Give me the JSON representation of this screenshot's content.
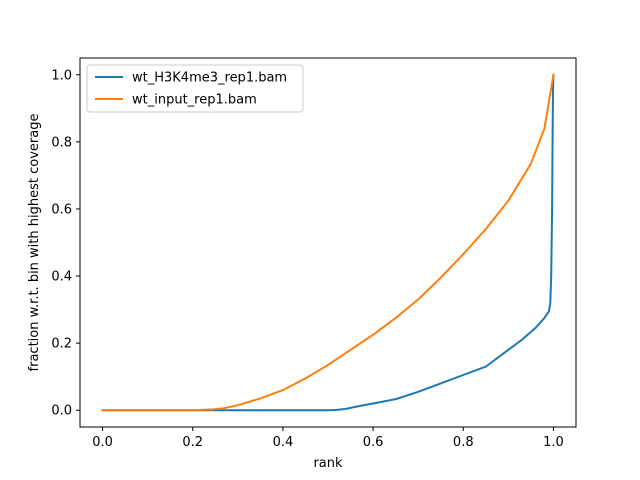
{
  "chart_data": {
    "type": "line",
    "title": "",
    "xlabel": "rank",
    "ylabel": "fraction w.r.t. bin with highest coverage",
    "xlim": [
      -0.05,
      1.05
    ],
    "ylim": [
      -0.05,
      1.05
    ],
    "xticks": [
      0.0,
      0.2,
      0.4,
      0.6,
      0.8,
      1.0
    ],
    "xtick_labels": [
      "0.0",
      "0.2",
      "0.4",
      "0.6",
      "0.8",
      "1.0"
    ],
    "yticks": [
      0.0,
      0.2,
      0.4,
      0.6,
      0.8,
      1.0
    ],
    "ytick_labels": [
      "0.0",
      "0.2",
      "0.4",
      "0.6",
      "0.8",
      "1.0"
    ],
    "grid": false,
    "legend_position": "upper-left",
    "series": [
      {
        "name": "wt_H3K4me3_rep1.bam",
        "color": "#1f77b4",
        "x": [
          0.0,
          0.1,
          0.2,
          0.3,
          0.4,
          0.5,
          0.52,
          0.54,
          0.56,
          0.6,
          0.65,
          0.7,
          0.75,
          0.8,
          0.85,
          0.9,
          0.93,
          0.96,
          0.98,
          0.99,
          0.993,
          0.995,
          0.996,
          0.997,
          0.998,
          0.999,
          1.0
        ],
        "y": [
          0.0,
          0.0,
          0.0,
          0.0,
          0.0,
          0.0,
          0.001,
          0.004,
          0.01,
          0.02,
          0.033,
          0.055,
          0.08,
          0.105,
          0.13,
          0.18,
          0.21,
          0.245,
          0.275,
          0.295,
          0.32,
          0.4,
          0.5,
          0.6,
          0.8,
          0.95,
          1.0
        ]
      },
      {
        "name": "wt_input_rep1.bam",
        "color": "#ff7f0e",
        "x": [
          0.0,
          0.1,
          0.2,
          0.24,
          0.27,
          0.3,
          0.35,
          0.4,
          0.45,
          0.5,
          0.55,
          0.6,
          0.65,
          0.7,
          0.75,
          0.8,
          0.85,
          0.9,
          0.95,
          0.98,
          1.0
        ],
        "y": [
          0.0,
          0.0,
          0.0,
          0.002,
          0.006,
          0.015,
          0.035,
          0.06,
          0.095,
          0.135,
          0.18,
          0.225,
          0.275,
          0.33,
          0.395,
          0.465,
          0.54,
          0.625,
          0.735,
          0.84,
          1.0
        ]
      }
    ]
  }
}
